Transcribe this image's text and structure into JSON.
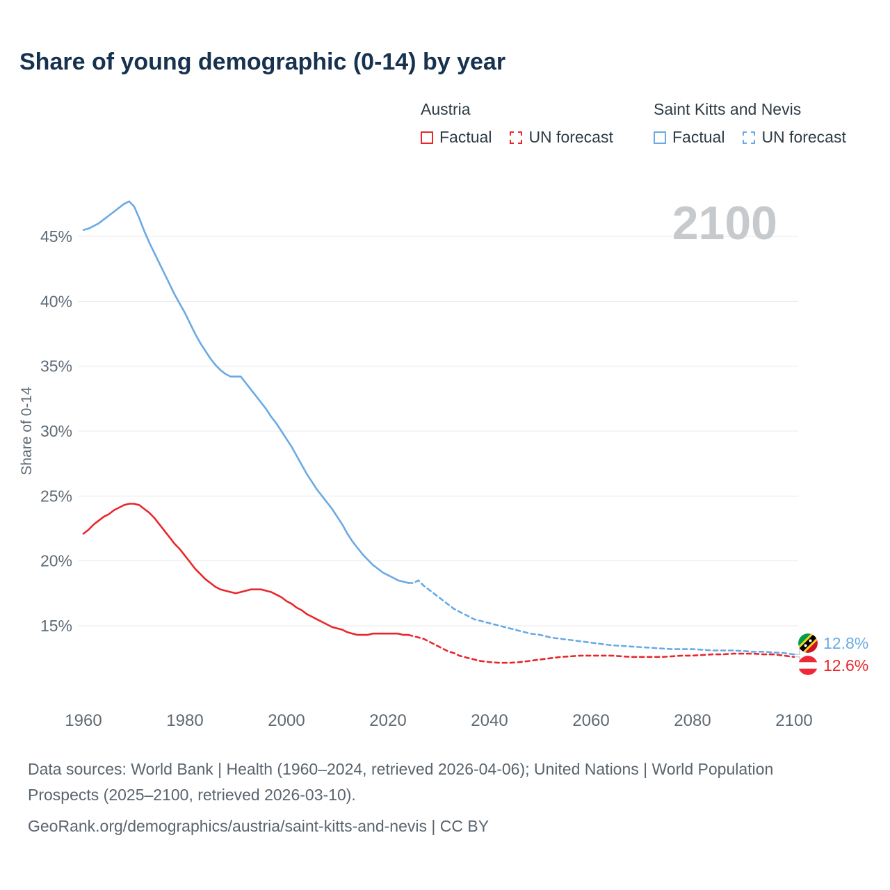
{
  "title": "Share of young demographic (0-14) by year",
  "watermark": "2100",
  "colors": {
    "austria": "#e8272c",
    "saint_kitts_and_nevis": "#6aaae4",
    "title_text": "#16324f",
    "axis_text": "#5d6a75",
    "gridline": "#e8e8e8",
    "watermark": "#c6cacd"
  },
  "legend": {
    "groups": [
      {
        "name": "Austria",
        "color": "#e8272c",
        "items": [
          {
            "label": "Factual",
            "style": "solid"
          },
          {
            "label": "UN forecast",
            "style": "dashed"
          }
        ]
      },
      {
        "name": "Saint Kitts and Nevis",
        "color": "#6aaae4",
        "items": [
          {
            "label": "Factual",
            "style": "solid"
          },
          {
            "label": "UN forecast",
            "style": "dashed"
          }
        ]
      }
    ]
  },
  "end_labels": [
    {
      "series": "Saint Kitts and Nevis",
      "value": "12.8%",
      "flag": "saint-kitts-and-nevis"
    },
    {
      "series": "Austria",
      "value": "12.6%",
      "flag": "austria"
    }
  ],
  "footer": {
    "sources": "Data sources: World Bank | Health (1960–2024, retrieved 2026-04-06); United Nations | World Population Prospects (2025–2100, retrieved 2026-03-10).",
    "attribution": "GeoRank.org/demographics/austria/saint-kitts-and-nevis | CC BY"
  },
  "chart_data": {
    "type": "line",
    "title": "Share of young demographic (0-14) by year",
    "xlabel": "",
    "ylabel": "Share of 0-14",
    "xlim": [
      1960,
      2100
    ],
    "ylim": [
      15,
      45
    ],
    "grid": true,
    "legend_position": "top-right",
    "x_ticks": [
      1960,
      1980,
      2000,
      2020,
      2040,
      2060,
      2080,
      2100
    ],
    "y_ticks": [
      15,
      20,
      25,
      30,
      35,
      40,
      45
    ],
    "y_tick_suffix": "%",
    "series": [
      {
        "name": "Saint Kitts and Nevis — Factual",
        "country": "Saint Kitts and Nevis",
        "kind": "factual",
        "color": "#6aaae4",
        "style": "solid",
        "points": [
          [
            1960,
            45.5
          ],
          [
            1961,
            45.6
          ],
          [
            1962,
            45.8
          ],
          [
            1963,
            46.0
          ],
          [
            1964,
            46.3
          ],
          [
            1965,
            46.6
          ],
          [
            1966,
            46.9
          ],
          [
            1967,
            47.2
          ],
          [
            1968,
            47.5
          ],
          [
            1969,
            47.7
          ],
          [
            1970,
            47.3
          ],
          [
            1971,
            46.4
          ],
          [
            1972,
            45.4
          ],
          [
            1973,
            44.5
          ],
          [
            1974,
            43.7
          ],
          [
            1975,
            42.9
          ],
          [
            1976,
            42.1
          ],
          [
            1977,
            41.3
          ],
          [
            1978,
            40.5
          ],
          [
            1979,
            39.8
          ],
          [
            1980,
            39.1
          ],
          [
            1981,
            38.3
          ],
          [
            1982,
            37.5
          ],
          [
            1983,
            36.8
          ],
          [
            1984,
            36.2
          ],
          [
            1985,
            35.6
          ],
          [
            1986,
            35.1
          ],
          [
            1987,
            34.7
          ],
          [
            1988,
            34.4
          ],
          [
            1989,
            34.2
          ],
          [
            1990,
            34.2
          ],
          [
            1991,
            34.2
          ],
          [
            1992,
            33.7
          ],
          [
            1993,
            33.2
          ],
          [
            1994,
            32.7
          ],
          [
            1995,
            32.2
          ],
          [
            1996,
            31.7
          ],
          [
            1997,
            31.1
          ],
          [
            1998,
            30.6
          ],
          [
            1999,
            30.0
          ],
          [
            2000,
            29.4
          ],
          [
            2001,
            28.8
          ],
          [
            2002,
            28.1
          ],
          [
            2003,
            27.4
          ],
          [
            2004,
            26.7
          ],
          [
            2005,
            26.1
          ],
          [
            2006,
            25.5
          ],
          [
            2007,
            25.0
          ],
          [
            2008,
            24.5
          ],
          [
            2009,
            24.0
          ],
          [
            2010,
            23.4
          ],
          [
            2011,
            22.8
          ],
          [
            2012,
            22.1
          ],
          [
            2013,
            21.5
          ],
          [
            2014,
            21.0
          ],
          [
            2015,
            20.5
          ],
          [
            2016,
            20.1
          ],
          [
            2017,
            19.7
          ],
          [
            2018,
            19.4
          ],
          [
            2019,
            19.1
          ],
          [
            2020,
            18.9
          ],
          [
            2021,
            18.7
          ],
          [
            2022,
            18.5
          ],
          [
            2023,
            18.4
          ],
          [
            2024,
            18.3
          ]
        ]
      },
      {
        "name": "Saint Kitts and Nevis — UN forecast",
        "country": "Saint Kitts and Nevis",
        "kind": "forecast",
        "color": "#6aaae4",
        "style": "dashed",
        "points": [
          [
            2024,
            18.3
          ],
          [
            2025,
            18.3
          ],
          [
            2026,
            18.5
          ],
          [
            2027,
            18.1
          ],
          [
            2028,
            17.8
          ],
          [
            2029,
            17.5
          ],
          [
            2030,
            17.2
          ],
          [
            2031,
            16.9
          ],
          [
            2032,
            16.6
          ],
          [
            2033,
            16.3
          ],
          [
            2034,
            16.1
          ],
          [
            2035,
            15.9
          ],
          [
            2036,
            15.7
          ],
          [
            2037,
            15.5
          ],
          [
            2038,
            15.4
          ],
          [
            2039,
            15.3
          ],
          [
            2040,
            15.2
          ],
          [
            2041,
            15.1
          ],
          [
            2042,
            15.0
          ],
          [
            2043,
            14.9
          ],
          [
            2044,
            14.8
          ],
          [
            2045,
            14.7
          ],
          [
            2046,
            14.6
          ],
          [
            2047,
            14.5
          ],
          [
            2048,
            14.4
          ],
          [
            2050,
            14.3
          ],
          [
            2052,
            14.1
          ],
          [
            2054,
            14.0
          ],
          [
            2056,
            13.9
          ],
          [
            2058,
            13.8
          ],
          [
            2060,
            13.7
          ],
          [
            2062,
            13.6
          ],
          [
            2064,
            13.5
          ],
          [
            2066,
            13.45
          ],
          [
            2068,
            13.4
          ],
          [
            2070,
            13.35
          ],
          [
            2072,
            13.3
          ],
          [
            2074,
            13.25
          ],
          [
            2076,
            13.2
          ],
          [
            2078,
            13.2
          ],
          [
            2080,
            13.2
          ],
          [
            2082,
            13.15
          ],
          [
            2084,
            13.1
          ],
          [
            2086,
            13.1
          ],
          [
            2088,
            13.1
          ],
          [
            2090,
            13.05
          ],
          [
            2092,
            13.0
          ],
          [
            2094,
            13.0
          ],
          [
            2096,
            12.95
          ],
          [
            2098,
            12.9
          ],
          [
            2100,
            12.8
          ]
        ]
      },
      {
        "name": "Austria — Factual",
        "country": "Austria",
        "kind": "factual",
        "color": "#e8272c",
        "style": "solid",
        "points": [
          [
            1960,
            22.1
          ],
          [
            1961,
            22.4
          ],
          [
            1962,
            22.8
          ],
          [
            1963,
            23.1
          ],
          [
            1964,
            23.4
          ],
          [
            1965,
            23.6
          ],
          [
            1966,
            23.9
          ],
          [
            1967,
            24.1
          ],
          [
            1968,
            24.3
          ],
          [
            1969,
            24.4
          ],
          [
            1970,
            24.4
          ],
          [
            1971,
            24.3
          ],
          [
            1972,
            24.0
          ],
          [
            1973,
            23.7
          ],
          [
            1974,
            23.3
          ],
          [
            1975,
            22.8
          ],
          [
            1976,
            22.3
          ],
          [
            1977,
            21.8
          ],
          [
            1978,
            21.3
          ],
          [
            1979,
            20.9
          ],
          [
            1980,
            20.4
          ],
          [
            1981,
            19.9
          ],
          [
            1982,
            19.4
          ],
          [
            1983,
            19.0
          ],
          [
            1984,
            18.6
          ],
          [
            1985,
            18.3
          ],
          [
            1986,
            18.0
          ],
          [
            1987,
            17.8
          ],
          [
            1988,
            17.7
          ],
          [
            1989,
            17.6
          ],
          [
            1990,
            17.5
          ],
          [
            1991,
            17.6
          ],
          [
            1992,
            17.7
          ],
          [
            1993,
            17.8
          ],
          [
            1994,
            17.8
          ],
          [
            1995,
            17.8
          ],
          [
            1996,
            17.7
          ],
          [
            1997,
            17.6
          ],
          [
            1998,
            17.4
          ],
          [
            1999,
            17.2
          ],
          [
            2000,
            16.9
          ],
          [
            2001,
            16.7
          ],
          [
            2002,
            16.4
          ],
          [
            2003,
            16.2
          ],
          [
            2004,
            15.9
          ],
          [
            2005,
            15.7
          ],
          [
            2006,
            15.5
          ],
          [
            2007,
            15.3
          ],
          [
            2008,
            15.1
          ],
          [
            2009,
            14.9
          ],
          [
            2010,
            14.8
          ],
          [
            2011,
            14.7
          ],
          [
            2012,
            14.5
          ],
          [
            2013,
            14.4
          ],
          [
            2014,
            14.3
          ],
          [
            2015,
            14.3
          ],
          [
            2016,
            14.3
          ],
          [
            2017,
            14.4
          ],
          [
            2018,
            14.4
          ],
          [
            2019,
            14.4
          ],
          [
            2020,
            14.4
          ],
          [
            2021,
            14.4
          ],
          [
            2022,
            14.4
          ],
          [
            2023,
            14.3
          ],
          [
            2024,
            14.3
          ]
        ]
      },
      {
        "name": "Austria — UN forecast",
        "country": "Austria",
        "kind": "forecast",
        "color": "#e8272c",
        "style": "dashed",
        "points": [
          [
            2024,
            14.3
          ],
          [
            2025,
            14.2
          ],
          [
            2026,
            14.1
          ],
          [
            2027,
            14.0
          ],
          [
            2028,
            13.8
          ],
          [
            2029,
            13.6
          ],
          [
            2030,
            13.4
          ],
          [
            2031,
            13.2
          ],
          [
            2032,
            13.0
          ],
          [
            2033,
            12.9
          ],
          [
            2034,
            12.7
          ],
          [
            2035,
            12.6
          ],
          [
            2036,
            12.5
          ],
          [
            2037,
            12.4
          ],
          [
            2038,
            12.3
          ],
          [
            2040,
            12.2
          ],
          [
            2042,
            12.15
          ],
          [
            2044,
            12.15
          ],
          [
            2046,
            12.2
          ],
          [
            2048,
            12.3
          ],
          [
            2050,
            12.4
          ],
          [
            2052,
            12.5
          ],
          [
            2054,
            12.6
          ],
          [
            2056,
            12.65
          ],
          [
            2058,
            12.7
          ],
          [
            2060,
            12.7
          ],
          [
            2062,
            12.7
          ],
          [
            2064,
            12.7
          ],
          [
            2066,
            12.65
          ],
          [
            2068,
            12.6
          ],
          [
            2070,
            12.6
          ],
          [
            2072,
            12.6
          ],
          [
            2074,
            12.6
          ],
          [
            2076,
            12.65
          ],
          [
            2078,
            12.7
          ],
          [
            2080,
            12.7
          ],
          [
            2082,
            12.75
          ],
          [
            2084,
            12.8
          ],
          [
            2086,
            12.8
          ],
          [
            2088,
            12.85
          ],
          [
            2090,
            12.85
          ],
          [
            2092,
            12.85
          ],
          [
            2094,
            12.8
          ],
          [
            2096,
            12.8
          ],
          [
            2098,
            12.7
          ],
          [
            2100,
            12.6
          ]
        ]
      }
    ]
  }
}
